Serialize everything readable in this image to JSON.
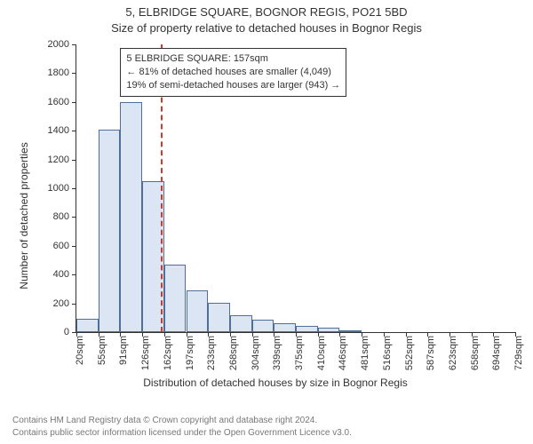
{
  "title_line1": "5, ELBRIDGE SQUARE, BOGNOR REGIS, PO21 5BD",
  "title_line2": "Size of property relative to detached houses in Bognor Regis",
  "y_axis_label": "Number of detached properties",
  "x_axis_label": "Distribution of detached houses by size in Bognor Regis",
  "chart": {
    "type": "histogram",
    "bar_fill": "#dbe5f3",
    "bar_stroke": "#4f6f9a",
    "background_color": "#ffffff",
    "axis_color": "#333333",
    "marker_color": "#d13a2a",
    "tick_fontsize": 11,
    "label_fontsize": 12,
    "title_fontsize": 13,
    "ylim": [
      0,
      2000
    ],
    "y_ticks": [
      0,
      200,
      400,
      600,
      800,
      1000,
      1200,
      1400,
      1600,
      1800,
      2000
    ],
    "x_categories": [
      "20sqm",
      "55sqm",
      "91sqm",
      "126sqm",
      "162sqm",
      "197sqm",
      "233sqm",
      "268sqm",
      "304sqm",
      "339sqm",
      "375sqm",
      "410sqm",
      "446sqm",
      "481sqm",
      "516sqm",
      "552sqm",
      "587sqm",
      "623sqm",
      "658sqm",
      "694sqm",
      "729sqm"
    ],
    "values": [
      90,
      1410,
      1600,
      1050,
      470,
      290,
      205,
      120,
      85,
      60,
      45,
      30,
      15,
      0,
      0,
      0,
      0,
      0,
      0,
      0
    ],
    "marker_bin_left_index": 3,
    "marker_fraction_of_bin": 0.86
  },
  "info_box": {
    "line1": "5 ELBRIDGE SQUARE: 157sqm",
    "line2": "← 81% of detached houses are smaller (4,049)",
    "line3": "19% of semi-detached houses are larger (943) →"
  },
  "footer": {
    "line1": "Contains HM Land Registry data © Crown copyright and database right 2024.",
    "line2": "Contains public sector information licensed under the Open Government Licence v3.0."
  }
}
